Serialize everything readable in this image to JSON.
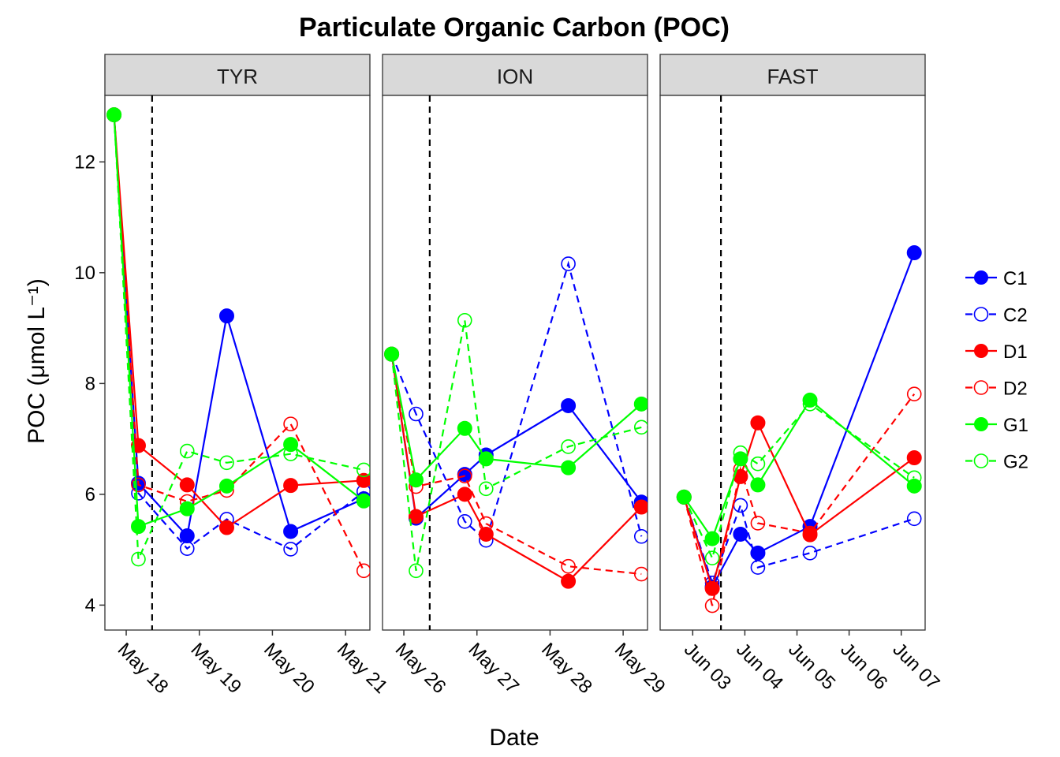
{
  "chart_data": {
    "type": "line",
    "title": "Particulate Organic Carbon (POC)",
    "xlabel": "Date",
    "ylabel": "POC (μmol L⁻¹)",
    "ylim": [
      3.55,
      13.2
    ],
    "yticks": [
      4,
      6,
      8,
      10,
      12
    ],
    "grid": false,
    "legend_position": "right",
    "series_styles": [
      {
        "name": "C1",
        "color": "#0000FF",
        "filled": true,
        "dashed": false
      },
      {
        "name": "C2",
        "color": "#0000FF",
        "filled": false,
        "dashed": true
      },
      {
        "name": "D1",
        "color": "#FF0000",
        "filled": true,
        "dashed": false
      },
      {
        "name": "D2",
        "color": "#FF0000",
        "filled": false,
        "dashed": true
      },
      {
        "name": "G1",
        "color": "#00FF00",
        "filled": true,
        "dashed": false
      },
      {
        "name": "G2",
        "color": "#00FF00",
        "filled": false,
        "dashed": true
      }
    ],
    "panels": [
      {
        "name": "TYR",
        "xlim": [
          "2016-05-17 17:00",
          "2016-05-21 08:00"
        ],
        "xticks": [
          {
            "date": "2016-05-18 00:00",
            "label": "May 18"
          },
          {
            "date": "2016-05-19 00:00",
            "label": "May 19"
          },
          {
            "date": "2016-05-20 00:00",
            "label": "May 20"
          },
          {
            "date": "2016-05-21 00:00",
            "label": "May 21"
          }
        ],
        "vline": "2016-05-18 08:30",
        "series": [
          {
            "name": "C1",
            "points": [
              [
                "2016-05-17 20:00",
                12.85
              ],
              [
                "2016-05-18 04:00",
                6.2
              ],
              [
                "2016-05-18 20:00",
                5.25
              ],
              [
                "2016-05-19 09:00",
                9.22
              ],
              [
                "2016-05-20 06:00",
                5.33
              ],
              [
                "2016-05-21 06:00",
                5.92
              ]
            ]
          },
          {
            "name": "C2",
            "points": [
              [
                "2016-05-17 20:00",
                12.85
              ],
              [
                "2016-05-18 04:00",
                6.02
              ],
              [
                "2016-05-18 20:00",
                5.02
              ],
              [
                "2016-05-19 09:00",
                5.55
              ],
              [
                "2016-05-20 06:00",
                5.01
              ],
              [
                "2016-05-21 06:00",
                6.05
              ]
            ]
          },
          {
            "name": "D1",
            "points": [
              [
                "2016-05-17 20:00",
                12.85
              ],
              [
                "2016-05-18 04:00",
                6.88
              ],
              [
                "2016-05-18 20:00",
                6.17
              ],
              [
                "2016-05-19 09:00",
                5.4
              ],
              [
                "2016-05-20 06:00",
                6.16
              ],
              [
                "2016-05-21 06:00",
                6.25
              ]
            ]
          },
          {
            "name": "D2",
            "points": [
              [
                "2016-05-17 20:00",
                12.85
              ],
              [
                "2016-05-18 04:00",
                6.17
              ],
              [
                "2016-05-18 20:00",
                5.87
              ],
              [
                "2016-05-19 09:00",
                6.07
              ],
              [
                "2016-05-20 06:00",
                7.27
              ],
              [
                "2016-05-21 06:00",
                4.62
              ]
            ]
          },
          {
            "name": "G1",
            "points": [
              [
                "2016-05-17 20:00",
                12.85
              ],
              [
                "2016-05-18 04:00",
                5.42
              ],
              [
                "2016-05-18 20:00",
                5.74
              ],
              [
                "2016-05-19 09:00",
                6.15
              ],
              [
                "2016-05-20 06:00",
                6.9
              ],
              [
                "2016-05-21 06:00",
                5.88
              ]
            ]
          },
          {
            "name": "G2",
            "points": [
              [
                "2016-05-17 20:00",
                12.85
              ],
              [
                "2016-05-18 04:00",
                4.83
              ],
              [
                "2016-05-18 20:00",
                6.78
              ],
              [
                "2016-05-19 09:00",
                6.57
              ],
              [
                "2016-05-20 06:00",
                6.73
              ],
              [
                "2016-05-21 06:00",
                6.44
              ]
            ]
          }
        ]
      },
      {
        "name": "ION",
        "xlim": [
          "2016-05-25 17:00",
          "2016-05-29 08:00"
        ],
        "xticks": [
          {
            "date": "2016-05-26 00:00",
            "label": "May 26"
          },
          {
            "date": "2016-05-27 00:00",
            "label": "May 27"
          },
          {
            "date": "2016-05-28 00:00",
            "label": "May 28"
          },
          {
            "date": "2016-05-29 00:00",
            "label": "May 29"
          }
        ],
        "vline": "2016-05-26 08:30",
        "series": [
          {
            "name": "C1",
            "points": [
              [
                "2016-05-25 20:00",
                8.53
              ],
              [
                "2016-05-26 04:00",
                5.57
              ],
              [
                "2016-05-26 20:00",
                6.36
              ],
              [
                "2016-05-27 03:00",
                6.71
              ],
              [
                "2016-05-28 06:00",
                7.6
              ],
              [
                "2016-05-29 06:00",
                5.86
              ]
            ]
          },
          {
            "name": "C2",
            "points": [
              [
                "2016-05-25 20:00",
                8.53
              ],
              [
                "2016-05-26 04:00",
                7.45
              ],
              [
                "2016-05-26 20:00",
                5.51
              ],
              [
                "2016-05-27 03:00",
                5.17
              ],
              [
                "2016-05-28 06:00",
                10.16
              ],
              [
                "2016-05-29 06:00",
                5.24
              ]
            ]
          },
          {
            "name": "D1",
            "points": [
              [
                "2016-05-25 20:00",
                8.53
              ],
              [
                "2016-05-26 04:00",
                5.6
              ],
              [
                "2016-05-26 20:00",
                6.0
              ],
              [
                "2016-05-27 03:00",
                5.28
              ],
              [
                "2016-05-28 06:00",
                4.43
              ],
              [
                "2016-05-29 06:00",
                5.77
              ]
            ]
          },
          {
            "name": "D2",
            "points": [
              [
                "2016-05-25 20:00",
                8.53
              ],
              [
                "2016-05-26 04:00",
                6.14
              ],
              [
                "2016-05-26 20:00",
                6.33
              ],
              [
                "2016-05-27 03:00",
                5.47
              ],
              [
                "2016-05-28 06:00",
                4.7
              ],
              [
                "2016-05-29 06:00",
                4.56
              ]
            ]
          },
          {
            "name": "G1",
            "points": [
              [
                "2016-05-25 20:00",
                8.53
              ],
              [
                "2016-05-26 04:00",
                6.26
              ],
              [
                "2016-05-26 20:00",
                7.19
              ],
              [
                "2016-05-27 03:00",
                6.64
              ],
              [
                "2016-05-28 06:00",
                6.48
              ],
              [
                "2016-05-29 06:00",
                7.63
              ]
            ]
          },
          {
            "name": "G2",
            "points": [
              [
                "2016-05-25 20:00",
                8.53
              ],
              [
                "2016-05-26 04:00",
                4.62
              ],
              [
                "2016-05-26 20:00",
                9.14
              ],
              [
                "2016-05-27 03:00",
                6.1
              ],
              [
                "2016-05-28 06:00",
                6.86
              ],
              [
                "2016-05-29 06:00",
                7.21
              ]
            ]
          }
        ]
      },
      {
        "name": "FAST",
        "xlim": [
          "2016-06-02 09:00",
          "2016-06-07 11:00"
        ],
        "xticks": [
          {
            "date": "2016-06-03 00:00",
            "label": "Jun 03"
          },
          {
            "date": "2016-06-04 00:00",
            "label": "Jun 04"
          },
          {
            "date": "2016-06-05 00:00",
            "label": "Jun 05"
          },
          {
            "date": "2016-06-06 00:00",
            "label": "Jun 06"
          },
          {
            "date": "2016-06-07 00:00",
            "label": "Jun 07"
          }
        ],
        "vline": "2016-06-03 13:00",
        "series": [
          {
            "name": "C1",
            "points": [
              [
                "2016-06-02 20:00",
                5.95
              ],
              [
                "2016-06-03 09:00",
                4.33
              ],
              [
                "2016-06-03 22:00",
                5.28
              ],
              [
                "2016-06-04 06:00",
                4.94
              ],
              [
                "2016-06-05 06:00",
                5.42
              ],
              [
                "2016-06-07 06:00",
                10.36
              ]
            ]
          },
          {
            "name": "C2",
            "points": [
              [
                "2016-06-02 20:00",
                5.95
              ],
              [
                "2016-06-03 09:00",
                4.4
              ],
              [
                "2016-06-03 22:00",
                5.8
              ],
              [
                "2016-06-04 06:00",
                4.68
              ],
              [
                "2016-06-05 06:00",
                4.94
              ],
              [
                "2016-06-07 06:00",
                5.56
              ]
            ]
          },
          {
            "name": "D1",
            "points": [
              [
                "2016-06-02 20:00",
                5.95
              ],
              [
                "2016-06-03 09:00",
                4.3
              ],
              [
                "2016-06-03 22:00",
                6.32
              ],
              [
                "2016-06-04 06:00",
                7.29
              ],
              [
                "2016-06-05 06:00",
                5.27
              ],
              [
                "2016-06-07 06:00",
                6.66
              ]
            ]
          },
          {
            "name": "D2",
            "points": [
              [
                "2016-06-02 20:00",
                5.95
              ],
              [
                "2016-06-03 09:00",
                3.99
              ],
              [
                "2016-06-03 22:00",
                6.45
              ],
              [
                "2016-06-04 06:00",
                5.48
              ],
              [
                "2016-06-05 06:00",
                5.3
              ],
              [
                "2016-06-07 06:00",
                7.81
              ]
            ]
          },
          {
            "name": "G1",
            "points": [
              [
                "2016-06-02 20:00",
                5.95
              ],
              [
                "2016-06-03 09:00",
                5.2
              ],
              [
                "2016-06-03 22:00",
                6.64
              ],
              [
                "2016-06-04 06:00",
                6.17
              ],
              [
                "2016-06-05 06:00",
                7.7
              ],
              [
                "2016-06-07 06:00",
                6.15
              ]
            ]
          },
          {
            "name": "G2",
            "points": [
              [
                "2016-06-02 20:00",
                5.95
              ],
              [
                "2016-06-03 09:00",
                4.85
              ],
              [
                "2016-06-03 22:00",
                6.75
              ],
              [
                "2016-06-04 06:00",
                6.55
              ],
              [
                "2016-06-05 06:00",
                7.63
              ],
              [
                "2016-06-07 06:00",
                6.3
              ]
            ]
          }
        ]
      }
    ]
  }
}
